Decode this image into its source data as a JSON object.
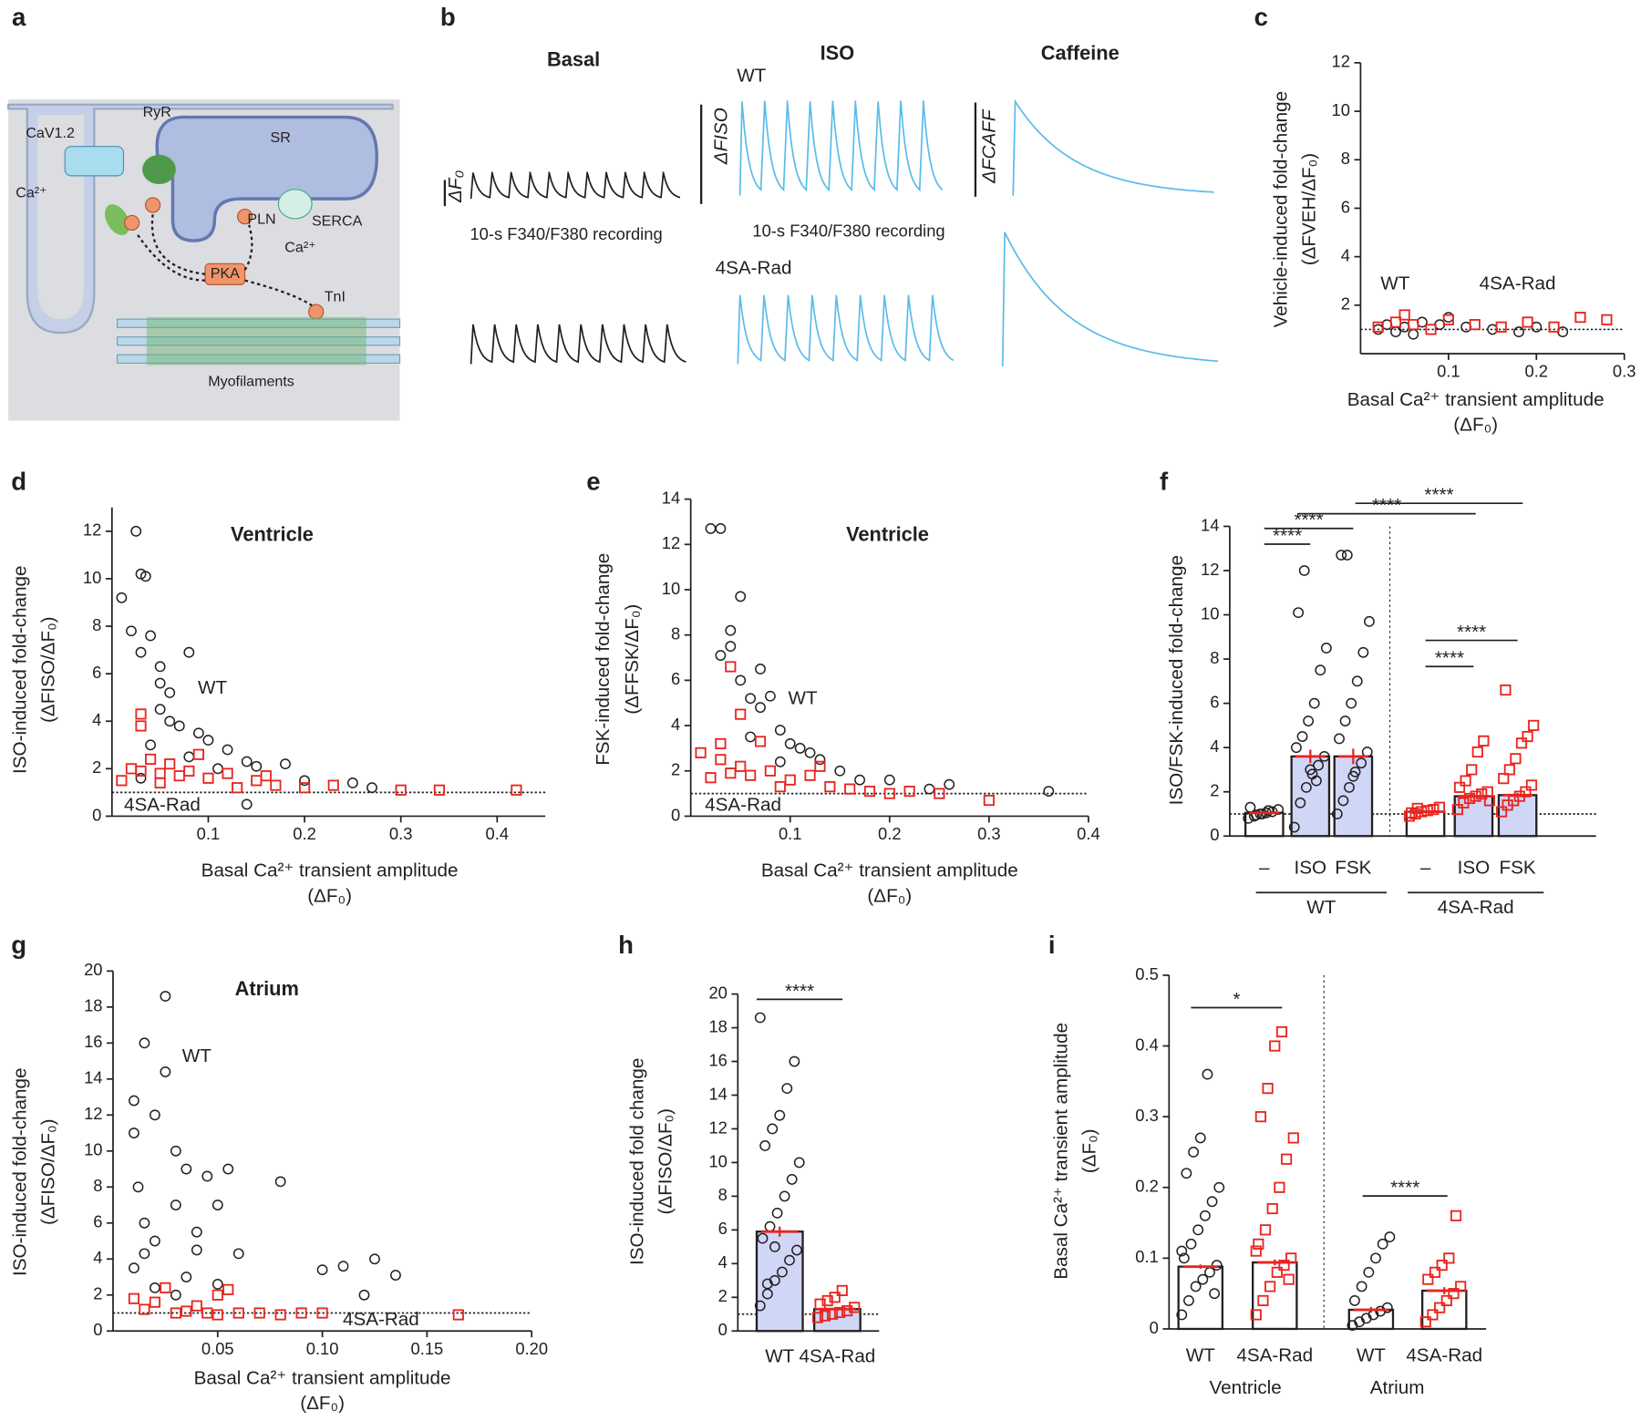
{
  "figure": {
    "panel_labels": [
      "a",
      "b",
      "c",
      "d",
      "e",
      "f",
      "g",
      "h",
      "i"
    ],
    "panel_a": {
      "labels": [
        "CaV1.2",
        "RyR",
        "SR",
        "Ca²⁺",
        "SERCA",
        "PLN",
        "Ca²⁺",
        "PKA",
        "TnI",
        "Myofilaments"
      ]
    },
    "panel_b": {
      "conditions": [
        "Basal",
        "ISO",
        "Caffeine"
      ],
      "genotypes": [
        "WT",
        "4SA-Rad"
      ],
      "scale_labels": [
        "ΔF₀",
        "ΔFISO",
        "ΔFCAFF"
      ],
      "recording": [
        "10-s F340/F380 recording",
        "10-s F340/F380 recording"
      ]
    }
  },
  "chart_data": [
    {
      "type": "scatter",
      "ylabel": [
        "Vehicle-induced fold-change",
        "(ΔFVEH/ΔF₀)"
      ],
      "xlabel": [
        "Basal Ca²⁺ transient amplitude",
        "(ΔF₀)"
      ],
      "xlim": [
        0,
        0.3
      ],
      "xticks": [
        0.1,
        0.2,
        0.3
      ],
      "ylim": [
        0,
        12
      ],
      "yticks": [
        2,
        4,
        6,
        8,
        10,
        12
      ],
      "reference_line": 1,
      "series": [
        {
          "name": "WT",
          "color": "#231f20",
          "marker": "circle",
          "x": [
            0.02,
            0.03,
            0.04,
            0.05,
            0.07,
            0.09,
            0.1,
            0.12,
            0.15,
            0.18,
            0.2,
            0.23,
            0.06
          ],
          "values": [
            1.0,
            1.2,
            0.9,
            1.1,
            1.3,
            1.2,
            1.5,
            1.1,
            1.0,
            0.9,
            1.1,
            0.9,
            0.8
          ]
        },
        {
          "name": "4SA-Rad",
          "color": "#e8251f",
          "marker": "square",
          "x": [
            0.02,
            0.04,
            0.06,
            0.08,
            0.1,
            0.13,
            0.16,
            0.19,
            0.22,
            0.25,
            0.28,
            0.05
          ],
          "values": [
            1.1,
            1.3,
            1.2,
            1.0,
            1.4,
            1.2,
            1.1,
            1.3,
            1.1,
            1.5,
            1.4,
            1.6
          ]
        }
      ]
    },
    {
      "type": "scatter",
      "title": "Ventricle",
      "ylabel": [
        "ISO-induced fold-change",
        "(ΔFISO/ΔF₀)"
      ],
      "xlabel": [
        "Basal Ca²⁺ transient amplitude",
        "(ΔF₀)"
      ],
      "xlim": [
        0,
        0.45
      ],
      "xticks": [
        0.1,
        0.2,
        0.3,
        0.4
      ],
      "ylim": [
        0,
        13
      ],
      "yticks": [
        0,
        2,
        4,
        6,
        8,
        10,
        12
      ],
      "reference_line": 1,
      "series": [
        {
          "name": "WT",
          "color": "#231f20",
          "marker": "circle",
          "x": [
            0.01,
            0.025,
            0.03,
            0.035,
            0.02,
            0.03,
            0.04,
            0.05,
            0.05,
            0.06,
            0.08,
            0.05,
            0.06,
            0.07,
            0.09,
            0.1,
            0.12,
            0.14,
            0.15,
            0.18,
            0.2,
            0.25,
            0.27,
            0.04,
            0.08,
            0.14,
            0.03,
            0.11
          ],
          "values": [
            9.2,
            12,
            10.2,
            10.1,
            7.8,
            6.9,
            7.6,
            6.3,
            5.6,
            5.2,
            6.9,
            4.5,
            4.0,
            3.8,
            3.5,
            3.2,
            2.8,
            2.3,
            2.1,
            2.2,
            1.5,
            1.4,
            1.2,
            3.0,
            2.5,
            0.5,
            1.6,
            2.0
          ]
        },
        {
          "name": "4SA-Rad",
          "color": "#e8251f",
          "marker": "square",
          "x": [
            0.01,
            0.02,
            0.03,
            0.03,
            0.04,
            0.05,
            0.06,
            0.07,
            0.08,
            0.1,
            0.12,
            0.15,
            0.17,
            0.2,
            0.23,
            0.3,
            0.34,
            0.42,
            0.05,
            0.09,
            0.13,
            0.16,
            0.03
          ],
          "values": [
            1.5,
            2.0,
            4.3,
            3.8,
            2.4,
            1.8,
            2.2,
            1.7,
            1.9,
            1.6,
            1.8,
            1.5,
            1.3,
            1.2,
            1.3,
            1.1,
            1.1,
            1.1,
            1.4,
            2.6,
            1.2,
            1.7,
            1.9
          ]
        }
      ]
    },
    {
      "type": "scatter",
      "title": "Ventricle",
      "ylabel": [
        "FSK-induced fold-change",
        "(ΔFFSK/ΔF₀)"
      ],
      "xlabel": [
        "Basal Ca²⁺ transient amplitude",
        "(ΔF₀)"
      ],
      "xlim": [
        0,
        0.4
      ],
      "xticks": [
        0.1,
        0.2,
        0.3,
        0.4
      ],
      "ylim": [
        0,
        14
      ],
      "yticks": [
        0,
        2,
        4,
        6,
        8,
        10,
        12,
        14
      ],
      "reference_line": 1,
      "series": [
        {
          "name": "WT",
          "color": "#231f20",
          "marker": "circle",
          "x": [
            0.02,
            0.03,
            0.05,
            0.04,
            0.03,
            0.04,
            0.07,
            0.05,
            0.06,
            0.08,
            0.07,
            0.09,
            0.1,
            0.11,
            0.12,
            0.13,
            0.15,
            0.17,
            0.2,
            0.24,
            0.26,
            0.36,
            0.06,
            0.09
          ],
          "values": [
            12.7,
            12.7,
            9.7,
            8.2,
            7.1,
            7.5,
            6.5,
            6.0,
            5.2,
            5.3,
            4.8,
            3.8,
            3.2,
            3.0,
            2.8,
            2.5,
            2.0,
            1.6,
            1.6,
            1.2,
            1.4,
            1.1,
            3.5,
            2.4
          ]
        },
        {
          "name": "4SA-Rad",
          "color": "#e8251f",
          "marker": "square",
          "x": [
            0.01,
            0.03,
            0.04,
            0.05,
            0.03,
            0.05,
            0.06,
            0.08,
            0.1,
            0.12,
            0.14,
            0.16,
            0.18,
            0.2,
            0.22,
            0.25,
            0.3,
            0.02,
            0.07,
            0.09,
            0.13,
            0.04
          ],
          "values": [
            2.8,
            3.2,
            6.6,
            4.5,
            2.5,
            2.2,
            1.8,
            2.0,
            1.6,
            1.8,
            1.3,
            1.2,
            1.1,
            1.0,
            1.1,
            1.0,
            0.7,
            1.7,
            3.3,
            1.3,
            2.2,
            1.9
          ]
        }
      ]
    },
    {
      "type": "bar",
      "ylabel": [
        "ISO/FSK-induced fold-change"
      ],
      "categories": [
        "–",
        "ISO",
        "FSK",
        "–",
        "ISO",
        "FSK"
      ],
      "groups": [
        "WT",
        "4SA-Rad"
      ],
      "values": [
        1.05,
        3.6,
        3.6,
        1.1,
        1.8,
        1.85
      ],
      "errors": [
        0.05,
        0.3,
        0.35,
        0.03,
        0.08,
        0.1
      ],
      "colors": [
        "#231f20",
        "#231f20",
        "#231f20",
        "#e8251f",
        "#e8251f",
        "#e8251f"
      ],
      "markers": [
        "circle",
        "circle",
        "circle",
        "square",
        "square",
        "square"
      ],
      "bar_fills": [
        "#ffffff",
        "#cfd6f6",
        "#cfd6f6",
        "#ffffff",
        "#cfd6f6",
        "#cfd6f6"
      ],
      "error_color": "#e8251f",
      "group_colors": [
        "#231f20",
        "#e8251f"
      ],
      "points": [
        [
          0.8,
          0.9,
          1.0,
          1.05,
          1.1,
          1.2,
          1.3,
          0.95,
          1.0,
          1.15
        ],
        [
          0.4,
          1.5,
          2.2,
          2.8,
          3.2,
          3.6,
          4.0,
          4.5,
          5.2,
          6.0,
          7.5,
          8.5,
          10.1,
          12.0,
          3.0,
          2.5
        ],
        [
          1.0,
          1.6,
          2.2,
          2.9,
          3.3,
          3.8,
          4.4,
          5.2,
          6.0,
          7.0,
          8.3,
          9.7,
          12.7,
          12.7,
          2.7
        ],
        [
          0.9,
          1.0,
          1.1,
          1.15,
          1.2,
          1.3,
          1.05,
          1.25
        ],
        [
          1.2,
          1.5,
          1.7,
          1.8,
          1.9,
          2.0,
          2.2,
          2.5,
          3.0,
          3.8,
          4.3,
          1.6
        ],
        [
          1.1,
          1.4,
          1.6,
          1.8,
          2.0,
          2.3,
          2.6,
          3.0,
          3.5,
          4.2,
          4.5,
          5.0,
          6.6
        ]
      ],
      "annotations": [
        "****",
        "****",
        "****",
        "****",
        "****",
        "****"
      ],
      "ylim": [
        0,
        14
      ],
      "yticks": [
        0,
        2,
        4,
        6,
        8,
        10,
        12,
        14
      ],
      "reference_line": 1
    },
    {
      "type": "scatter",
      "title": "Atrium",
      "ylabel": [
        "ISO-induced fold-change",
        "(ΔFISO/ΔF₀)"
      ],
      "xlabel": [
        "Basal Ca²⁺ transient amplitude",
        "(ΔF₀)"
      ],
      "xlim": [
        0,
        0.2
      ],
      "xticks": [
        0.05,
        {
          "value": 0.1,
          "label": "0.10"
        },
        0.15,
        {
          "value": 0.2,
          "label": "0.20"
        }
      ],
      "ylim": [
        0,
        20
      ],
      "yticks": [
        0,
        2,
        4,
        6,
        8,
        10,
        12,
        14,
        16,
        18,
        20
      ],
      "reference_line": 1,
      "series": [
        {
          "name": "WT",
          "color": "#231f20",
          "marker": "circle",
          "x": [
            0.01,
            0.01,
            0.015,
            0.02,
            0.025,
            0.025,
            0.012,
            0.015,
            0.02,
            0.01,
            0.03,
            0.03,
            0.035,
            0.04,
            0.045,
            0.05,
            0.055,
            0.06,
            0.08,
            0.1,
            0.11,
            0.12,
            0.125,
            0.135,
            0.02,
            0.03,
            0.04,
            0.05,
            0.015,
            0.035
          ],
          "values": [
            12.8,
            11,
            16,
            12,
            18.6,
            14.4,
            8,
            6,
            5,
            3.5,
            10,
            7,
            9,
            4.5,
            8.6,
            7,
            9,
            4.3,
            8.3,
            3.4,
            3.6,
            2,
            4,
            3.1,
            2.4,
            2,
            5.5,
            2.6,
            4.3,
            3
          ]
        },
        {
          "name": "4SA-Rad",
          "color": "#e8251f",
          "marker": "square",
          "x": [
            0.01,
            0.015,
            0.02,
            0.025,
            0.03,
            0.035,
            0.04,
            0.045,
            0.05,
            0.055,
            0.06,
            0.07,
            0.08,
            0.09,
            0.1,
            0.165,
            0.05
          ],
          "values": [
            1.8,
            1.2,
            1.6,
            2.4,
            1.0,
            1.1,
            1.4,
            1.0,
            0.9,
            2.3,
            1.0,
            1.0,
            0.9,
            1.0,
            1.0,
            0.9,
            2.0
          ]
        }
      ]
    },
    {
      "type": "bar",
      "ylabel": [
        "ISO-induced fold change",
        "(ΔFISO/ΔF₀)"
      ],
      "categories": [
        "WT",
        "4SA-Rad"
      ],
      "values": [
        5.9,
        1.3
      ],
      "errors": [
        0.3,
        0.1
      ],
      "colors": [
        "#231f20",
        "#e8251f"
      ],
      "markers": [
        "circle",
        "square"
      ],
      "bar_fills": [
        "#cfd6f6",
        "#cfd6f6"
      ],
      "error_color": "#e8251f",
      "points": [
        [
          1.5,
          2.2,
          3.0,
          3.5,
          4.2,
          4.8,
          5.5,
          6.2,
          7.0,
          8.0,
          9.0,
          10.0,
          11.0,
          12.0,
          12.8,
          14.4,
          16.0,
          18.6,
          2.8,
          5.0
        ],
        [
          0.8,
          0.9,
          1.0,
          1.1,
          1.2,
          1.4,
          1.6,
          1.8,
          2.0,
          2.4
        ]
      ],
      "annotations": [
        "****"
      ],
      "ylim": [
        0,
        20
      ],
      "yticks": [
        0,
        2,
        4,
        6,
        8,
        10,
        12,
        14,
        16,
        18,
        20
      ],
      "reference_line": 1
    },
    {
      "type": "bar",
      "ylabel": [
        "Basal Ca²⁺ transient amplitude",
        "(ΔF₀)"
      ],
      "categories": [
        "WT",
        "4SA-Rad",
        "WT",
        "4SA-Rad"
      ],
      "groups": [
        "Ventricle",
        "Atrium"
      ],
      "values": [
        0.088,
        0.094,
        0.027,
        0.054
      ],
      "errors": [
        0.003,
        0.004,
        0.004,
        0.005
      ],
      "colors": [
        "#231f20",
        "#e8251f",
        "#231f20",
        "#e8251f"
      ],
      "markers": [
        "circle",
        "square",
        "circle",
        "square"
      ],
      "bar_fills": [
        "#ffffff",
        "#ffffff",
        "#ffffff",
        "#ffffff"
      ],
      "error_color": "#e8251f",
      "group_colors": [
        "#231f20",
        "#231f20"
      ],
      "points": [
        [
          0.02,
          0.04,
          0.06,
          0.07,
          0.08,
          0.09,
          0.1,
          0.12,
          0.14,
          0.16,
          0.18,
          0.2,
          0.22,
          0.25,
          0.27,
          0.36,
          0.05,
          0.11
        ],
        [
          0.02,
          0.04,
          0.06,
          0.08,
          0.09,
          0.1,
          0.12,
          0.14,
          0.17,
          0.2,
          0.24,
          0.27,
          0.3,
          0.34,
          0.4,
          0.42,
          0.07,
          0.11
        ],
        [
          0.005,
          0.01,
          0.015,
          0.02,
          0.025,
          0.03,
          0.04,
          0.06,
          0.08,
          0.1,
          0.12,
          0.13
        ],
        [
          0.01,
          0.02,
          0.03,
          0.04,
          0.05,
          0.06,
          0.07,
          0.08,
          0.09,
          0.1,
          0.16
        ]
      ],
      "annotations": [
        "*",
        "****"
      ],
      "ylim": [
        0,
        0.5
      ],
      "yticks": [
        0,
        0.1,
        0.2,
        0.3,
        0.4,
        0.5
      ]
    }
  ]
}
